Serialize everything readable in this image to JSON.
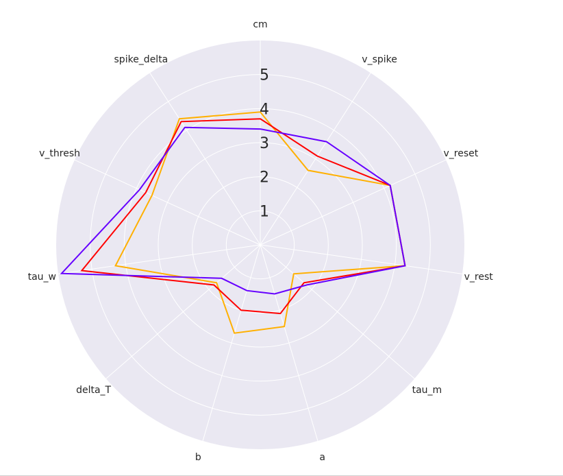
{
  "chart_data": {
    "type": "radar",
    "title": "",
    "axes": [
      "cm",
      "v_spike",
      "v_reset",
      "v_rest",
      "tau_m",
      "a",
      "b",
      "delta_T",
      "tau_w",
      "v_thresh",
      "spike_delta"
    ],
    "rticks": [
      "1",
      "2",
      "3",
      "4",
      "5"
    ],
    "rlim": [
      0,
      6
    ],
    "grid": true,
    "background_color": "#eae8f2",
    "grid_color": "#ffffff",
    "series": [
      {
        "color": "#ffb000",
        "values": [
          3.9,
          2.6,
          4.2,
          4.3,
          1.3,
          2.5,
          2.7,
          1.7,
          4.3,
          3.5,
          4.4
        ]
      },
      {
        "color": "#ff0000",
        "values": [
          3.7,
          3.1,
          4.2,
          4.3,
          1.7,
          2.1,
          2.0,
          1.8,
          5.3,
          3.7,
          4.3
        ]
      },
      {
        "color": "#6600ff",
        "values": [
          3.4,
          3.6,
          4.2,
          4.3,
          1.8,
          1.5,
          1.4,
          1.5,
          5.9,
          3.9,
          4.1
        ]
      }
    ]
  }
}
